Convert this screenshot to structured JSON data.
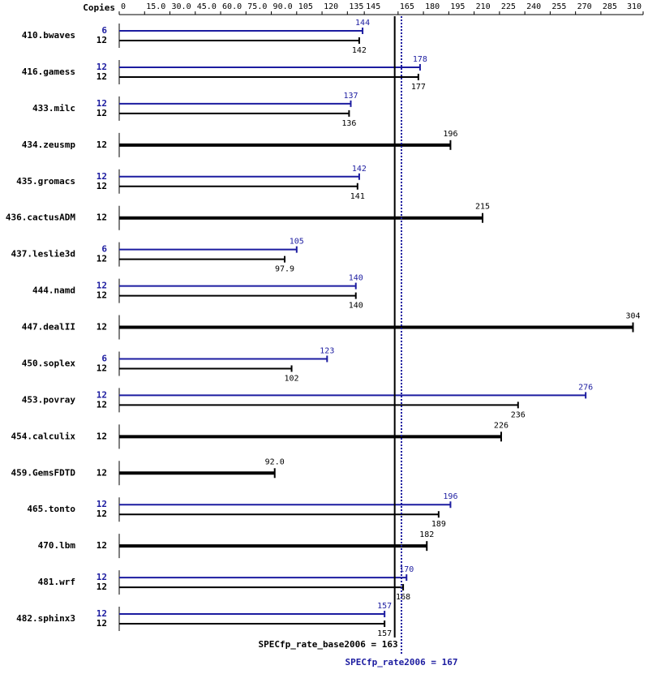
{
  "chart_data": {
    "type": "spec-bar",
    "copies_label": "Copies",
    "categories": [
      "410.bwaves",
      "416.gamess",
      "433.milc",
      "434.zeusmp",
      "435.gromacs",
      "436.cactusADM",
      "437.leslie3d",
      "444.namd",
      "447.dealII",
      "450.soplex",
      "453.povray",
      "454.calculix",
      "459.GemsFDTD",
      "465.tonto",
      "470.lbm",
      "481.wrf",
      "482.sphinx3"
    ],
    "series": [
      {
        "color": "#1c1ca0",
        "copies": [
          6,
          12,
          12,
          null,
          12,
          null,
          6,
          12,
          null,
          6,
          12,
          null,
          null,
          12,
          null,
          12,
          12
        ],
        "values": [
          144,
          178,
          137,
          null,
          142,
          null,
          105,
          140,
          null,
          123,
          276,
          null,
          null,
          196,
          null,
          170,
          157
        ]
      },
      {
        "color": "#000000",
        "copies": [
          12,
          12,
          12,
          12,
          12,
          12,
          12,
          12,
          12,
          12,
          12,
          12,
          12,
          12,
          12,
          12,
          12
        ],
        "values": [
          142,
          177,
          136,
          196,
          141,
          215,
          97.9,
          140,
          304,
          102,
          236,
          226,
          92.0,
          189,
          182,
          168,
          157
        ],
        "value_labels": [
          "142",
          "177",
          "136",
          "196",
          "141",
          "215",
          "97.9",
          "140",
          "304",
          "102",
          "236",
          "226",
          "92.0",
          "189",
          "182",
          "168",
          "157"
        ]
      }
    ],
    "xlim": [
      0,
      310
    ],
    "xticks": [
      0,
      {
        "value": 15,
        "label": "15.0"
      },
      {
        "value": 30,
        "label": "30.0"
      },
      {
        "value": 45,
        "label": "45.0"
      },
      {
        "value": 60,
        "label": "60.0"
      },
      {
        "value": 75,
        "label": "75.0"
      },
      {
        "value": 90,
        "label": "90.0"
      },
      105,
      120,
      135,
      145,
      165,
      180,
      195,
      210,
      225,
      240,
      255,
      270,
      285,
      310
    ],
    "base_summary": {
      "text": "SPECfp_rate_base2006 = 163",
      "value": 163
    },
    "peak_summary": {
      "text": "SPECfp_rate2006 = 167",
      "value": 167
    }
  }
}
